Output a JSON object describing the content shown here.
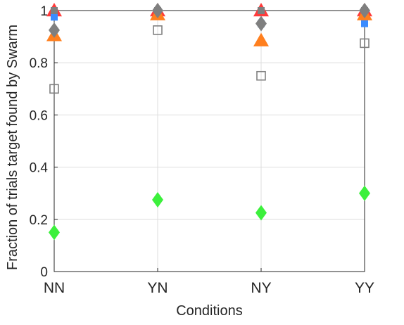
{
  "chart_data": {
    "type": "scatter",
    "title": "",
    "xlabel": "Conditions",
    "ylabel": "Fraction of trials target found by Swarm",
    "categories": [
      "NN",
      "YN",
      "NY",
      "YY"
    ],
    "ylim": [
      0,
      1
    ],
    "yticks": [
      "0",
      "0.2",
      "0.4",
      "0.6",
      "0.8",
      "1"
    ],
    "grid": true,
    "legend": "none",
    "series": [
      {
        "marker": "triangle-up",
        "color": "#ff3b3b",
        "fill": true,
        "values": [
          1.0,
          1.0,
          1.0,
          1.0
        ]
      },
      {
        "marker": "square",
        "color": "#3b8cff",
        "fill": true,
        "values": [
          0.975,
          1.0,
          0.95,
          0.95
        ]
      },
      {
        "marker": "square",
        "color": "#7f7f7f",
        "fill": true,
        "values": [
          1.0,
          1.0,
          1.0,
          1.0
        ]
      },
      {
        "marker": "triangle-up",
        "color": "#ff7f1e",
        "fill": true,
        "values": [
          0.905,
          0.985,
          0.885,
          0.985
        ]
      },
      {
        "marker": "diamond",
        "color": "#7f7f7f",
        "fill": true,
        "values": [
          0.925,
          1.0,
          0.95,
          1.0
        ]
      },
      {
        "marker": "square",
        "color": "#808080",
        "fill": false,
        "values": [
          0.7,
          0.925,
          0.75,
          0.875
        ]
      },
      {
        "marker": "diamond",
        "color": "#3cf03c",
        "fill": true,
        "values": [
          0.15,
          0.275,
          0.225,
          0.3
        ]
      }
    ]
  }
}
